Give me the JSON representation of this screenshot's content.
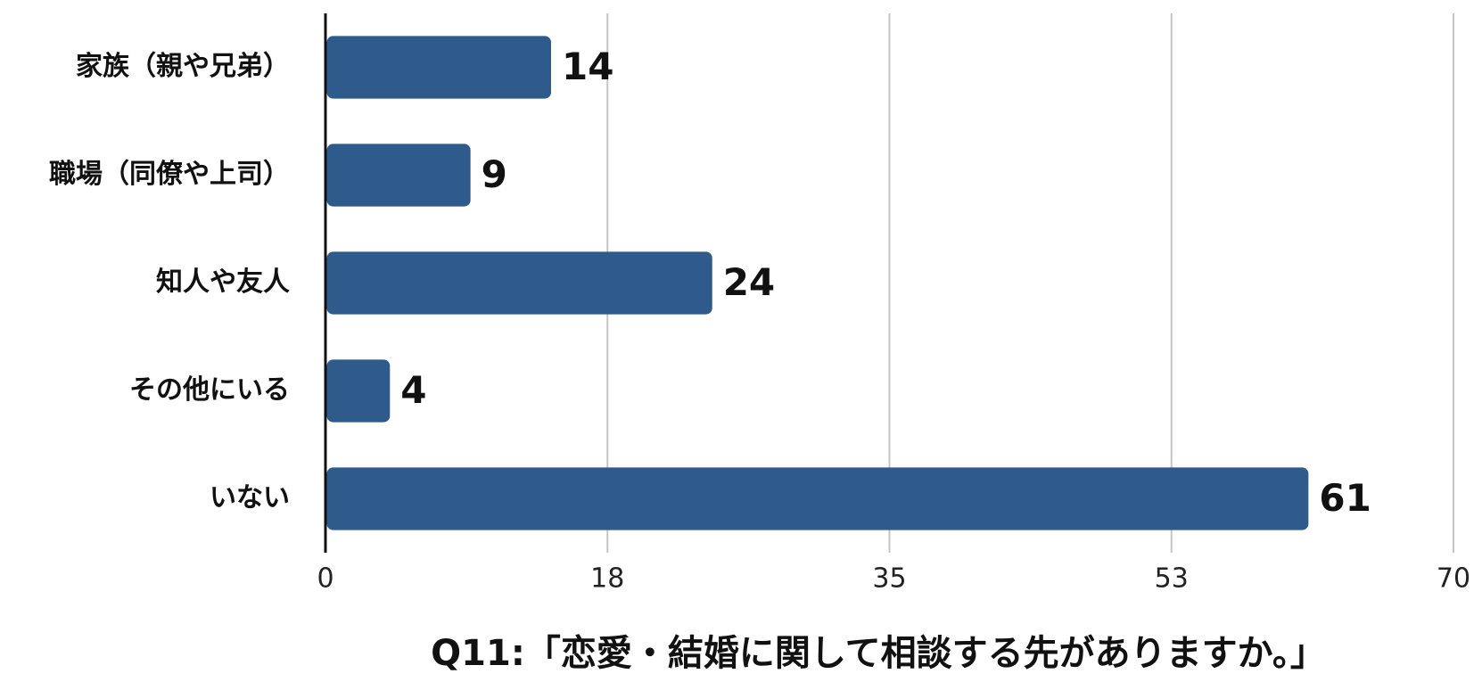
{
  "chart_data": {
    "type": "barh",
    "title": "Q11:「恋愛・結婚に関して相談する先がありますか。」",
    "categories": [
      "家族（親や兄弟）",
      "職場（同僚や上司）",
      "知人や友人",
      "その他にいる",
      "いない"
    ],
    "values": [
      14,
      9,
      24,
      4,
      61
    ],
    "color": "#2f5a8c",
    "xlim": [
      0,
      70
    ],
    "xticks": [
      0,
      {
        "value": 17.5,
        "label": "18"
      },
      35,
      {
        "value": 52.5,
        "label": "53"
      },
      70
    ],
    "grid": true
  }
}
